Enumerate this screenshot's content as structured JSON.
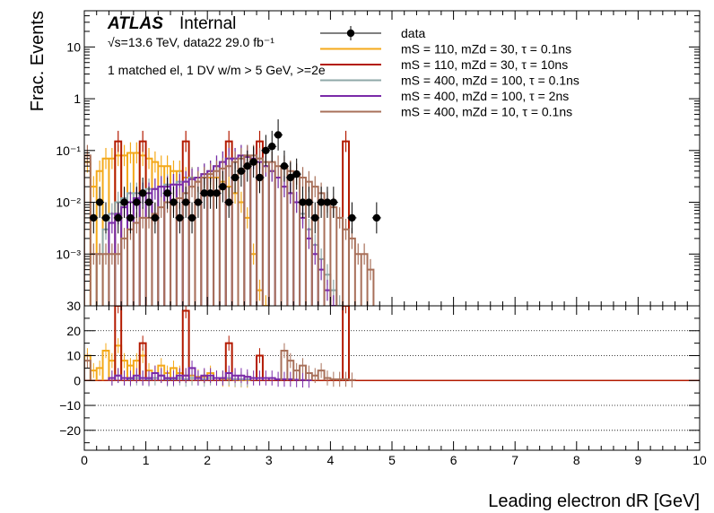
{
  "chart_data": {
    "type": "line",
    "style": "step-histogram with data points, two panels (main log-y, ratio linear)",
    "atlas_label": "ATLAS",
    "atlas_status": "Internal",
    "energy_text": "√s=13.6 TeV, data22 29.0 fb⁻¹",
    "selection_text": "1 matched el, 1 DV w/m > 5 GeV, >=2e",
    "xlabel": "Leading electron dR [GeV]",
    "ylabel": "Frac. Events",
    "xlim": [
      0,
      10
    ],
    "x_ticks": [
      "0",
      "1",
      "2",
      "3",
      "4",
      "5",
      "6",
      "7",
      "8",
      "9",
      "10"
    ],
    "main_ylim_log": [
      0.0001,
      50
    ],
    "main_y_ticks": [
      "10⁻³",
      "10⁻²",
      "10⁻¹",
      "1",
      "10"
    ],
    "main_y_tick_values": [
      0.001,
      0.01,
      0.1,
      1,
      10
    ],
    "ratio_ylim": [
      -28,
      30
    ],
    "ratio_y_ticks": [
      "−20",
      "−10",
      "0",
      "10",
      "20",
      "30"
    ],
    "ratio_y_tick_values": [
      -20,
      -10,
      0,
      10,
      20,
      30
    ],
    "legend_position": "top-right",
    "legend": [
      {
        "label": "data",
        "color": "#000000",
        "marker": "point"
      },
      {
        "label": "mS = 110, mZd = 30, τ = 0.1ns",
        "color": "#f4a91a",
        "marker": "line"
      },
      {
        "label": "mS = 110, mZd = 30, τ = 10ns",
        "color": "#b31a00",
        "marker": "line"
      },
      {
        "label": "mS = 400, mZd = 100, τ = 0.1ns",
        "color": "#8fa8a8",
        "marker": "line"
      },
      {
        "label": "mS = 400, mZd = 100, τ = 2ns",
        "color": "#7a2aa8",
        "marker": "line"
      },
      {
        "label": "mS = 400, mZd = 10, τ = 0.1ns",
        "color": "#a8705a",
        "marker": "line"
      }
    ],
    "bin_width": 0.1,
    "data_points": {
      "x": [
        0.15,
        0.25,
        0.35,
        0.55,
        0.65,
        0.75,
        0.85,
        0.95,
        1.05,
        1.15,
        1.35,
        1.45,
        1.55,
        1.65,
        1.75,
        1.85,
        1.95,
        2.05,
        2.15,
        2.25,
        2.35,
        2.45,
        2.55,
        2.65,
        2.75,
        2.85,
        2.95,
        3.05,
        3.15,
        3.25,
        3.35,
        3.45,
        3.55,
        3.65,
        3.75,
        3.85,
        3.95,
        4.05,
        4.35,
        4.75
      ],
      "y": [
        0.005,
        0.01,
        0.005,
        0.005,
        0.01,
        0.005,
        0.01,
        0.015,
        0.01,
        0.005,
        0.015,
        0.01,
        0.005,
        0.01,
        0.005,
        0.01,
        0.015,
        0.015,
        0.015,
        0.02,
        0.01,
        0.03,
        0.04,
        0.05,
        0.06,
        0.03,
        0.1,
        0.12,
        0.2,
        0.05,
        0.03,
        0.035,
        0.01,
        0.01,
        0.005,
        0.01,
        0.01,
        0.01,
        0.005,
        0.005
      ]
    },
    "series": [
      {
        "name": "mS = 110, mZd = 30, τ = 0.1ns",
        "color": "#f4a91a",
        "y": [
          0.06,
          0.02,
          0.04,
          0.07,
          0.07,
          0.08,
          0.08,
          0.09,
          0.09,
          0.08,
          0.07,
          0.06,
          0.05,
          0.05,
          0.04,
          0.04,
          0.03,
          0.03,
          0.025,
          0.03,
          0.03,
          0.03,
          0.025,
          0.02,
          0.015,
          0.01,
          0.005,
          0.001,
          0.0002,
          0.0001,
          0,
          0,
          0,
          0,
          0,
          0,
          0,
          0,
          0,
          0,
          0,
          0,
          0,
          0,
          0,
          0,
          0,
          0,
          0,
          0
        ],
        "ratio": [
          10,
          4,
          5,
          12,
          8,
          14,
          8,
          6,
          8,
          10,
          4,
          3,
          6,
          3,
          5,
          3,
          2,
          2,
          1.5,
          1.5,
          3,
          1,
          0.5,
          0.5,
          0.3,
          0.2,
          0.1,
          0,
          0,
          0,
          0,
          0,
          0,
          0,
          0,
          0,
          0,
          0,
          0,
          0,
          0,
          0,
          0,
          0,
          0,
          0,
          0,
          0,
          0,
          0
        ]
      },
      {
        "name": "mS = 110, mZd = 30, τ = 10ns",
        "color": "#b31a00",
        "y": [
          0,
          0,
          0,
          0,
          0,
          0.15,
          0,
          0,
          0,
          0.15,
          0,
          0,
          0,
          0,
          0,
          0,
          0.15,
          0,
          0,
          0,
          0,
          0,
          0,
          0.15,
          0,
          0,
          0,
          0,
          0.15,
          0,
          0,
          0,
          0,
          0,
          0,
          0,
          0,
          0,
          0,
          0,
          0,
          0,
          0.15,
          0,
          0,
          0,
          0,
          0,
          0,
          0
        ],
        "ratio": [
          0,
          0,
          0,
          0,
          0,
          30,
          0,
          0,
          0,
          15,
          0,
          0,
          0,
          0,
          0,
          0,
          28,
          0,
          0,
          0,
          0,
          0,
          0,
          15,
          0,
          0,
          0,
          0,
          10,
          0,
          0,
          0,
          0,
          0,
          0,
          0,
          0,
          0,
          0,
          0,
          0,
          0,
          30,
          0,
          0,
          0,
          0,
          0,
          0,
          0
        ]
      },
      {
        "name": "mS = 400, mZd = 100, τ = 0.1ns",
        "color": "#8fa8a8",
        "y": [
          0,
          0,
          0.001,
          0.003,
          0.006,
          0.01,
          0.012,
          0.015,
          0.015,
          0.015,
          0.018,
          0.018,
          0.02,
          0.022,
          0.022,
          0.025,
          0.025,
          0.03,
          0.03,
          0.035,
          0.04,
          0.05,
          0.06,
          0.07,
          0.07,
          0.08,
          0.08,
          0.08,
          0.07,
          0.05,
          0.04,
          0.03,
          0.02,
          0.015,
          0.01,
          0.006,
          0.003,
          0.0015,
          0.0008,
          0.0004,
          0.0002,
          0.0001,
          0,
          0,
          0,
          0,
          0,
          0,
          0,
          0
        ],
        "ratio": [
          0,
          0,
          0,
          0,
          1,
          2,
          1,
          0.5,
          1,
          1,
          0.5,
          1,
          2,
          0.5,
          0.5,
          1,
          0.5,
          1,
          1,
          0.5,
          1,
          1,
          1,
          1,
          0.5,
          0.5,
          0.5,
          0,
          0,
          0,
          0,
          0,
          0,
          0,
          0,
          0,
          0,
          0,
          0,
          0,
          0,
          0,
          0,
          0,
          0,
          0,
          0,
          0,
          0,
          0
        ]
      },
      {
        "name": "mS = 400, mZd = 100, τ = 2ns",
        "color": "#7a2aa8",
        "y": [
          0,
          0,
          0,
          0,
          0.004,
          0.006,
          0.008,
          0.01,
          0.012,
          0.015,
          0.015,
          0.018,
          0.02,
          0.02,
          0.022,
          0.022,
          0.025,
          0.028,
          0.03,
          0.035,
          0.04,
          0.05,
          0.06,
          0.07,
          0.07,
          0.08,
          0.075,
          0.07,
          0.06,
          0.05,
          0.04,
          0.03,
          0.02,
          0.015,
          0.01,
          0.005,
          0.002,
          0.001,
          0.0005,
          0.0002,
          0.0001,
          0,
          0,
          0,
          0,
          0,
          0,
          0,
          0,
          0
        ],
        "ratio": [
          0,
          0,
          0,
          0,
          1,
          2,
          1,
          1,
          2,
          1,
          1,
          3,
          2,
          1,
          1,
          2,
          2,
          5,
          1,
          2,
          2,
          1,
          1,
          3,
          2,
          2,
          1.5,
          1,
          1,
          1,
          1,
          0.5,
          0.5,
          0.5,
          0.3,
          0.2,
          0.1,
          0,
          0,
          0,
          0,
          0,
          0,
          0,
          0,
          0,
          0,
          0,
          0,
          0
        ]
      },
      {
        "name": "mS = 400, mZd = 10, τ = 0.1ns",
        "color": "#a8705a",
        "y": [
          0.08,
          0.001,
          0.001,
          0.001,
          0.001,
          0.001,
          0.002,
          0.003,
          0.004,
          0.005,
          0.005,
          0.006,
          0.008,
          0.01,
          0.01,
          0.012,
          0.015,
          0.02,
          0.025,
          0.03,
          0.035,
          0.04,
          0.045,
          0.05,
          0.06,
          0.07,
          0.08,
          0.08,
          0.07,
          0.06,
          0.06,
          0.05,
          0.05,
          0.04,
          0.035,
          0.03,
          0.025,
          0.02,
          0.015,
          0.01,
          0.008,
          0.005,
          0.003,
          0.002,
          0.001,
          0.001,
          0.0005,
          0,
          0,
          0
        ],
        "ratio": [
          8,
          0,
          0,
          0,
          0,
          0,
          0,
          0,
          0,
          0,
          0,
          0,
          0,
          0,
          0,
          0,
          0,
          0,
          0,
          0,
          0,
          0,
          0,
          0,
          0,
          0,
          0,
          0,
          0,
          0,
          0,
          0,
          12,
          8,
          4,
          6,
          3,
          2,
          4,
          1,
          0.5,
          0.5,
          0.5,
          0.2,
          0,
          0,
          0,
          0,
          0,
          0
        ]
      }
    ]
  }
}
